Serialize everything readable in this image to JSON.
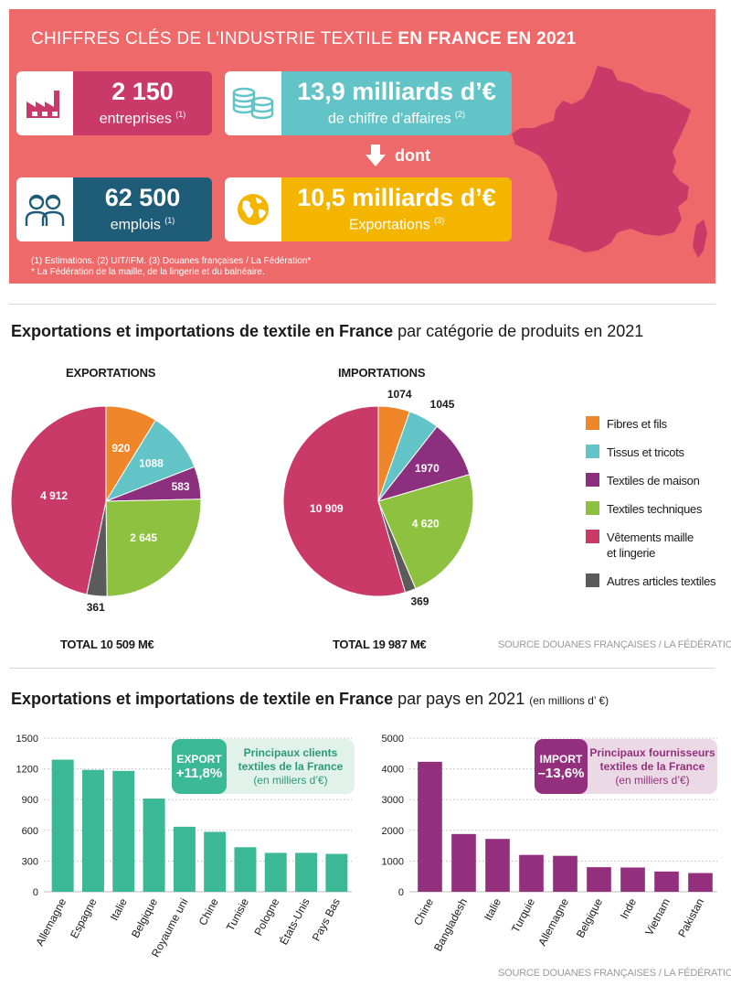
{
  "header": {
    "title_plain": "CHIFFRES CLÉS DE L’INDUSTRIE TEXTILE ",
    "title_bold": "EN FRANCE EN 2021"
  },
  "key_figures": {
    "enterprises": {
      "value": "2 150",
      "label": "entreprises",
      "note": "(1)",
      "icon": "factory-icon"
    },
    "revenue": {
      "value": "13,9 milliards d’€",
      "label": "de chiffre d’affaires",
      "note": "(2)",
      "icon": "coins-stack-icon"
    },
    "jobs": {
      "value": "62 500",
      "label": "emplois",
      "note": "(1)",
      "icon": "people-icon"
    },
    "exports": {
      "value": "10,5 milliards d’€",
      "label": "Exportations",
      "note": "(3)",
      "icon": "globe-icon"
    },
    "dont": "dont",
    "arrow_icon": "arrow-down-icon",
    "map_icon": "france-map-icon"
  },
  "footnotes": {
    "line1": "(1) Estimations. (2) UIT/IFM. (3) Douanes françaises / La Fédération*",
    "line2": "* La Fédération de la maille, de la lingerie et du balnéaire."
  },
  "colors": {
    "banner": "#ee6a6a",
    "fibres": "#f0862a",
    "tissus": "#63c4c7",
    "maison": "#8c2f7f",
    "techniques": "#8dc13f",
    "vetements": "#c93a68",
    "autres": "#5b5b5b",
    "export_bar": "#3bb996",
    "import_bar": "#93307d"
  },
  "section_categories": {
    "title_bold": "Exportations et importations de textile en France",
    "title_plain": " par catégorie de produits en 2021",
    "source": "SOURCE DOUANES FRANÇAISES / LA FÉDÉRATION*"
  },
  "section_countries": {
    "title_bold": "Exportations et importations de textile en France",
    "title_plain": " par pays en 2021 ",
    "title_small": "(en millions d’ €)",
    "source": "SOURCE DOUANES FRANÇAISES / LA FÉDÉRATION*",
    "export_callout": {
      "tag": "EXPORT",
      "change": "+11,8%",
      "line1": "Principaux clients",
      "line2": "textiles de la France",
      "line3": "(en milliers d’€)"
    },
    "import_callout": {
      "tag": "IMPORT",
      "change": "–13,6%",
      "line1": "Principaux fournisseurs",
      "line2": "textiles de la France",
      "line3": "(en milliers d’€)"
    }
  },
  "chart_data": [
    {
      "type": "pie",
      "title": "EXPORTATIONS",
      "total_label": "TOTAL 10 509 M€",
      "slices": [
        {
          "name": "Fibres et fils",
          "value": 920,
          "label": "920"
        },
        {
          "name": "Tissus et tricots",
          "value": 1088,
          "label": "1088"
        },
        {
          "name": "Textiles de maison",
          "value": 583,
          "label": "583"
        },
        {
          "name": "Textiles techniques",
          "value": 2645,
          "label": "2 645"
        },
        {
          "name": "Autres articles textiles",
          "value": 361,
          "label": "361"
        },
        {
          "name": "Vêtements maille et lingerie",
          "value": 4912,
          "label": "4 912"
        }
      ]
    },
    {
      "type": "pie",
      "title": "IMPORTATIONS",
      "total_label": "TOTAL 19 987 M€",
      "slices": [
        {
          "name": "Fibres et fils",
          "value": 1074,
          "label": "1074"
        },
        {
          "name": "Tissus et tricots",
          "value": 1045,
          "label": "1045"
        },
        {
          "name": "Textiles de maison",
          "value": 1970,
          "label": "1970"
        },
        {
          "name": "Textiles techniques",
          "value": 4620,
          "label": "4 620"
        },
        {
          "name": "Autres articles textiles",
          "value": 369,
          "label": "369"
        },
        {
          "name": "Vêtements maille et lingerie",
          "value": 10909,
          "label": "10 909"
        }
      ]
    },
    {
      "type": "bar",
      "categories": [
        "Allemagne",
        "Espagne",
        "Italie",
        "Belgique",
        "Royaume uni",
        "Chine",
        "Tunisie",
        "Pologne",
        "États-Unis",
        "Pays Bas"
      ],
      "values": [
        1290,
        1190,
        1180,
        910,
        635,
        585,
        435,
        380,
        380,
        370
      ],
      "yticks": [
        0,
        300,
        600,
        900,
        1200,
        1500
      ],
      "ylim": [
        0,
        1500
      ],
      "grid": true
    },
    {
      "type": "bar",
      "categories": [
        "Chine",
        "Bangladesh",
        "Italie",
        "Turquie",
        "Allemagne",
        "Belgique",
        "Inde",
        "Vietnam",
        "Pakistan"
      ],
      "values": [
        4230,
        1880,
        1720,
        1200,
        1170,
        800,
        790,
        660,
        610
      ],
      "yticks": [
        0,
        1000,
        2000,
        3000,
        4000,
        5000
      ],
      "ylim": [
        0,
        5000
      ],
      "grid": true
    }
  ],
  "legend": [
    {
      "label": "Fibres et fils",
      "color_key": "fibres"
    },
    {
      "label": "Tissus et tricots",
      "color_key": "tissus"
    },
    {
      "label": "Textiles de maison",
      "color_key": "maison"
    },
    {
      "label": "Textiles techniques",
      "color_key": "techniques"
    },
    {
      "label": "Vêtements maille",
      "label2": "et lingerie",
      "color_key": "vetements"
    },
    {
      "label": "Autres articles textiles",
      "color_key": "autres"
    }
  ]
}
